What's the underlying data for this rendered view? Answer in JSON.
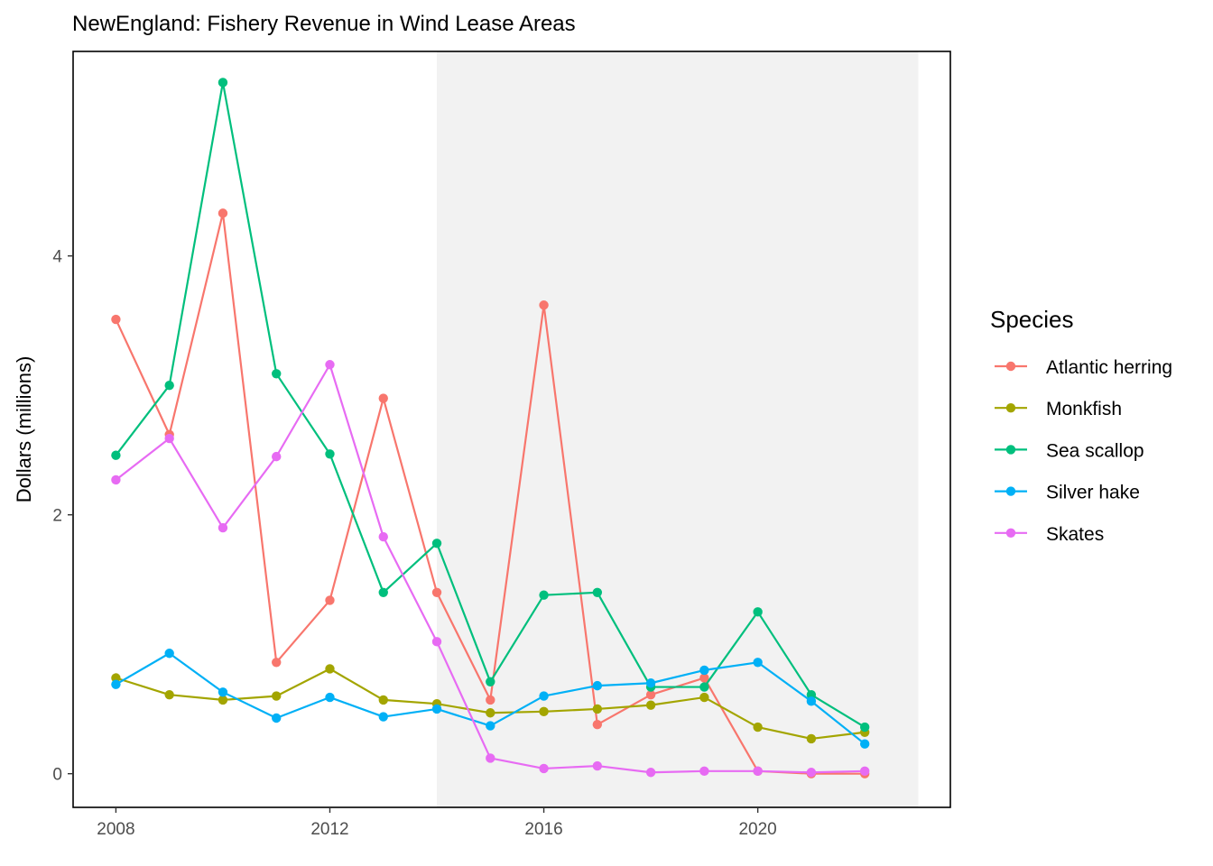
{
  "chart_data": {
    "type": "line",
    "title": "NewEngland: Fishery Revenue in Wind Lease Areas",
    "xlabel": "",
    "ylabel": "Dollars (millions)",
    "xlim": [
      2007.2,
      2023.6
    ],
    "ylim": [
      -0.26,
      5.58
    ],
    "x_ticks": [
      2008,
      2012,
      2016,
      2020
    ],
    "y_ticks": [
      0,
      2,
      4
    ],
    "shaded_region": {
      "x_start": 2014,
      "x_end": 2023,
      "color": "#f2f2f2"
    },
    "legend": {
      "title": "Species",
      "position": "right"
    },
    "grid": false,
    "x": [
      2008,
      2009,
      2010,
      2011,
      2012,
      2013,
      2014,
      2015,
      2016,
      2017,
      2018,
      2019,
      2020,
      2021,
      2022
    ],
    "series": [
      {
        "name": "Atlantic herring",
        "color": "#F8766D",
        "values": [
          3.51,
          2.62,
          4.33,
          0.86,
          1.34,
          2.9,
          1.4,
          0.57,
          3.62,
          0.38,
          0.61,
          0.74,
          0.02,
          0.0,
          0.0
        ]
      },
      {
        "name": "Monkfish",
        "color": "#A3A500",
        "values": [
          0.74,
          0.61,
          0.57,
          0.6,
          0.81,
          0.57,
          0.54,
          0.47,
          0.48,
          0.5,
          0.53,
          0.59,
          0.36,
          0.27,
          0.32
        ]
      },
      {
        "name": "Sea scallop",
        "color": "#00BF7D",
        "values": [
          2.46,
          3.0,
          5.34,
          3.09,
          2.47,
          1.4,
          1.78,
          0.71,
          1.38,
          1.4,
          0.67,
          0.67,
          1.25,
          0.61,
          0.36
        ]
      },
      {
        "name": "Silver hake",
        "color": "#00B0F6",
        "values": [
          0.69,
          0.93,
          0.63,
          0.43,
          0.59,
          0.44,
          0.5,
          0.37,
          0.6,
          0.68,
          0.7,
          0.8,
          0.86,
          0.56,
          0.23
        ]
      },
      {
        "name": "Skates",
        "color": "#E76BF3",
        "values": [
          2.27,
          2.59,
          1.9,
          2.45,
          3.16,
          1.83,
          1.02,
          0.12,
          0.04,
          0.06,
          0.01,
          0.02,
          0.02,
          0.01,
          0.02
        ]
      }
    ]
  }
}
